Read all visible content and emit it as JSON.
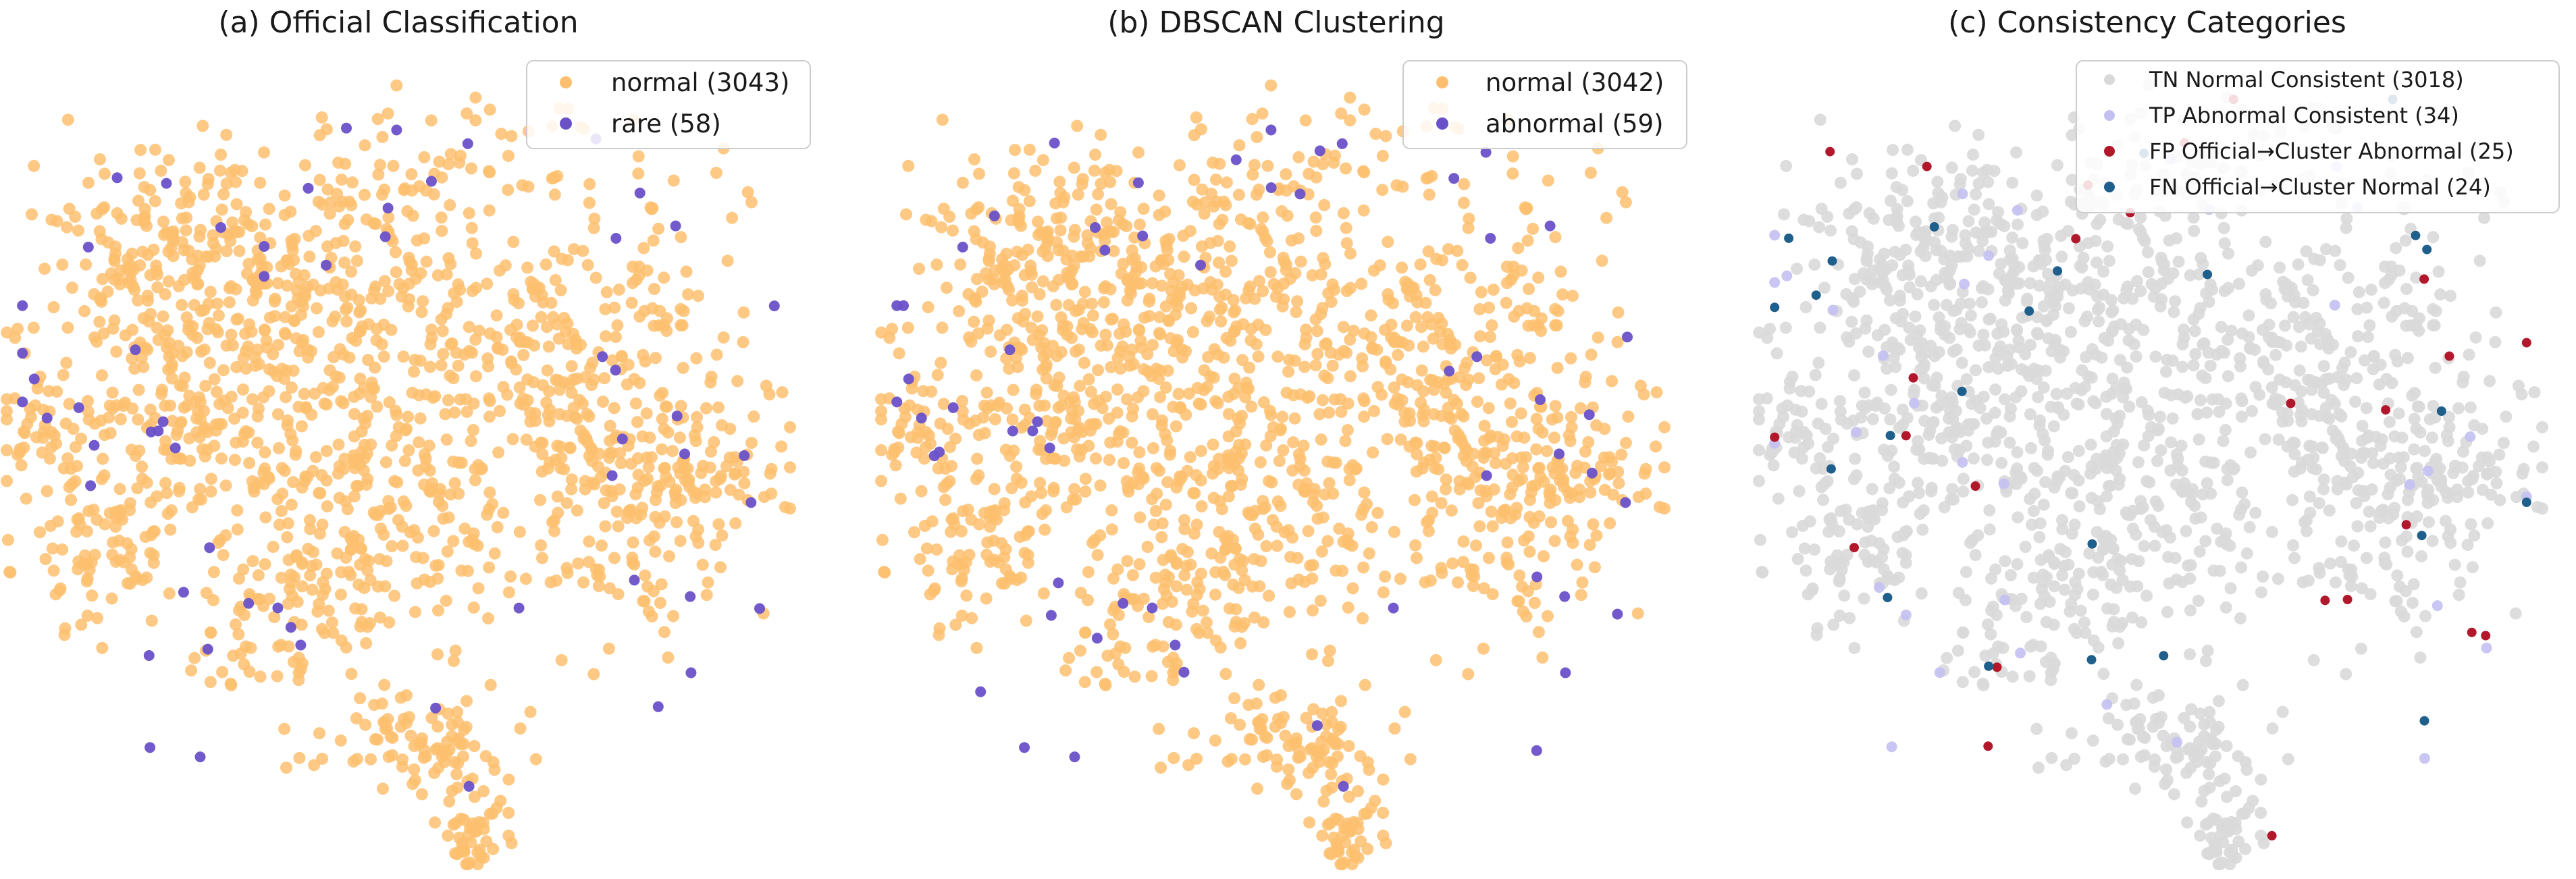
{
  "chart_data": [
    {
      "type": "scatter",
      "title": "(a) Official Classification",
      "xlabel": "",
      "ylabel": "",
      "axes": "off",
      "grid": false,
      "legend_position": "top-right",
      "series": [
        {
          "name": "normal (3043)",
          "color": "#fdbf6f",
          "count": 3043
        },
        {
          "name": "rare (58)",
          "color": "#6a51c9",
          "count": 58
        }
      ]
    },
    {
      "type": "scatter",
      "title": "(b) DBSCAN Clustering",
      "xlabel": "",
      "ylabel": "",
      "axes": "off",
      "grid": false,
      "legend_position": "top-right",
      "series": [
        {
          "name": "normal (3042)",
          "color": "#fdbf6f",
          "count": 3042
        },
        {
          "name": "abnormal (59)",
          "color": "#6a51c9",
          "count": 59
        }
      ]
    },
    {
      "type": "scatter",
      "title": "(c) Consistency Categories",
      "xlabel": "",
      "ylabel": "",
      "axes": "off",
      "grid": false,
      "legend_position": "top-right",
      "series": [
        {
          "name": "TN Normal Consistent (3018)",
          "color": "#d9d9d9",
          "count": 3018
        },
        {
          "name": "TP Abnormal Consistent (34)",
          "color": "#c4c0f2",
          "count": 34
        },
        {
          "name": "FP Official→Cluster Abnormal (25)",
          "color": "#b2182b",
          "count": 25
        },
        {
          "name": "FN Official→Cluster Normal (24)",
          "color": "#1f5f8b",
          "count": 24
        }
      ]
    }
  ]
}
